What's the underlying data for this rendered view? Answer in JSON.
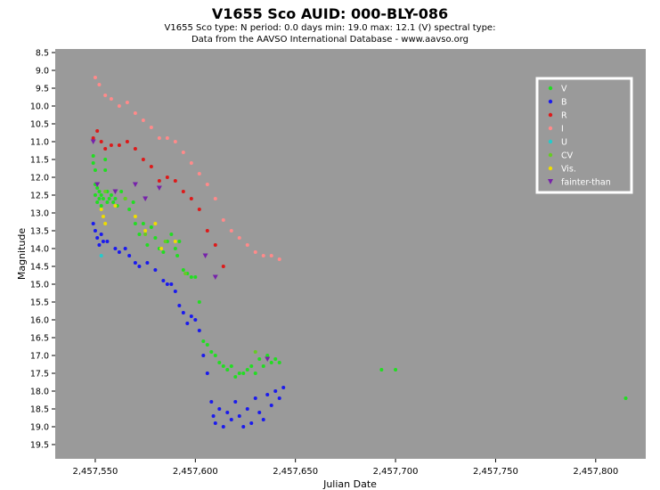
{
  "header": {
    "title": "V1655 Sco    AUID: 000-BLY-086",
    "subtitle_line1": "V1655 Sco   type: N   period: 0.0 days   min: 19.0   max: 12.1 (V)   spectral type:",
    "subtitle_line2": "Data from the AAVSO International Database - www.aavso.org"
  },
  "chart_data": {
    "type": "scatter",
    "xlabel": "Julian Date",
    "ylabel": "Magnitude",
    "xlim": [
      2457530,
      2457825
    ],
    "ylim": [
      19.5,
      8.5
    ],
    "y_inverted": true,
    "x_ticks": [
      2457550,
      2457600,
      2457650,
      2457700,
      2457750,
      2457800
    ],
    "x_tick_labels": [
      "2,457,550",
      "2,457,600",
      "2,457,650",
      "2,457,700",
      "2,457,750",
      "2,457,800"
    ],
    "y_ticks": [
      8.5,
      9.0,
      9.5,
      10.0,
      10.5,
      11.0,
      11.5,
      12.0,
      12.5,
      13.0,
      13.5,
      14.0,
      14.5,
      15.0,
      15.5,
      16.0,
      16.5,
      17.0,
      17.5,
      18.0,
      18.5,
      19.0,
      19.5
    ],
    "y_tick_labels": [
      "8.5",
      "9.0",
      "9.5",
      "10.0",
      "10.5",
      "11.0",
      "11.5",
      "12.0",
      "12.5",
      "13.0",
      "13.5",
      "14.0",
      "14.5",
      "15.0",
      "15.5",
      "16.0",
      "16.5",
      "17.0",
      "17.5",
      "18.0",
      "18.5",
      "19.0",
      "19.5"
    ],
    "plot_background": "#9a9a9a",
    "grid": false,
    "legend_position": "top-right",
    "series": [
      {
        "name": "V",
        "color": "#22dd22",
        "marker": "circle",
        "points": [
          [
            2457549,
            11.4
          ],
          [
            2457549,
            11.6
          ],
          [
            2457550,
            11.8
          ],
          [
            2457550,
            12.2
          ],
          [
            2457550,
            12.5
          ],
          [
            2457551,
            12.3
          ],
          [
            2457551,
            12.7
          ],
          [
            2457552,
            12.4
          ],
          [
            2457552,
            12.6
          ],
          [
            2457553,
            12.5
          ],
          [
            2457553,
            12.8
          ],
          [
            2457554,
            12.6
          ],
          [
            2457555,
            11.5
          ],
          [
            2457555,
            11.8
          ],
          [
            2457556,
            12.4
          ],
          [
            2457556,
            12.7
          ],
          [
            2457557,
            12.6
          ],
          [
            2457558,
            12.5
          ],
          [
            2457559,
            12.7
          ],
          [
            2457560,
            12.6
          ],
          [
            2457561,
            12.8
          ],
          [
            2457563,
            12.4
          ],
          [
            2457565,
            12.6
          ],
          [
            2457567,
            12.9
          ],
          [
            2457569,
            12.7
          ],
          [
            2457570,
            13.3
          ],
          [
            2457572,
            13.6
          ],
          [
            2457574,
            13.3
          ],
          [
            2457576,
            13.9
          ],
          [
            2457578,
            13.4
          ],
          [
            2457580,
            13.7
          ],
          [
            2457582,
            14.0
          ],
          [
            2457584,
            14.1
          ],
          [
            2457586,
            13.8
          ],
          [
            2457588,
            13.6
          ],
          [
            2457590,
            14.0
          ],
          [
            2457591,
            14.2
          ],
          [
            2457592,
            13.8
          ],
          [
            2457594,
            14.6
          ],
          [
            2457596,
            14.7
          ],
          [
            2457598,
            14.8
          ],
          [
            2457600,
            14.8
          ],
          [
            2457602,
            15.5
          ],
          [
            2457604,
            16.6
          ],
          [
            2457606,
            16.7
          ],
          [
            2457608,
            16.9
          ],
          [
            2457610,
            17.0
          ],
          [
            2457612,
            17.2
          ],
          [
            2457614,
            17.3
          ],
          [
            2457616,
            17.4
          ],
          [
            2457618,
            17.3
          ],
          [
            2457620,
            17.6
          ],
          [
            2457622,
            17.5
          ],
          [
            2457624,
            17.5
          ],
          [
            2457626,
            17.4
          ],
          [
            2457628,
            17.3
          ],
          [
            2457630,
            17.5
          ],
          [
            2457632,
            17.1
          ],
          [
            2457634,
            17.3
          ],
          [
            2457636,
            17.0
          ],
          [
            2457638,
            17.2
          ],
          [
            2457640,
            17.1
          ],
          [
            2457642,
            17.2
          ],
          [
            2457693,
            17.4
          ],
          [
            2457700,
            17.4
          ],
          [
            2457815,
            18.2
          ]
        ]
      },
      {
        "name": "B",
        "color": "#1a1aee",
        "marker": "circle",
        "points": [
          [
            2457549,
            13.3
          ],
          [
            2457550,
            13.5
          ],
          [
            2457551,
            13.7
          ],
          [
            2457552,
            13.9
          ],
          [
            2457553,
            13.6
          ],
          [
            2457554,
            13.8
          ],
          [
            2457556,
            13.8
          ],
          [
            2457560,
            14.0
          ],
          [
            2457562,
            14.1
          ],
          [
            2457565,
            14.0
          ],
          [
            2457567,
            14.2
          ],
          [
            2457570,
            14.4
          ],
          [
            2457572,
            14.5
          ],
          [
            2457576,
            14.4
          ],
          [
            2457580,
            14.6
          ],
          [
            2457584,
            14.9
          ],
          [
            2457586,
            15.0
          ],
          [
            2457588,
            15.0
          ],
          [
            2457590,
            15.2
          ],
          [
            2457592,
            15.6
          ],
          [
            2457594,
            15.8
          ],
          [
            2457596,
            16.1
          ],
          [
            2457598,
            15.9
          ],
          [
            2457600,
            16.0
          ],
          [
            2457602,
            16.3
          ],
          [
            2457604,
            17.0
          ],
          [
            2457606,
            17.5
          ],
          [
            2457608,
            18.3
          ],
          [
            2457609,
            18.7
          ],
          [
            2457610,
            18.9
          ],
          [
            2457612,
            18.5
          ],
          [
            2457614,
            19.0
          ],
          [
            2457616,
            18.6
          ],
          [
            2457618,
            18.8
          ],
          [
            2457620,
            18.3
          ],
          [
            2457622,
            18.7
          ],
          [
            2457624,
            19.0
          ],
          [
            2457626,
            18.5
          ],
          [
            2457628,
            18.9
          ],
          [
            2457630,
            18.2
          ],
          [
            2457632,
            18.6
          ],
          [
            2457634,
            18.8
          ],
          [
            2457636,
            18.1
          ],
          [
            2457638,
            18.4
          ],
          [
            2457640,
            18.0
          ],
          [
            2457642,
            18.2
          ],
          [
            2457644,
            17.9
          ]
        ]
      },
      {
        "name": "R",
        "color": "#dd1a1a",
        "marker": "circle",
        "points": [
          [
            2457549,
            10.9
          ],
          [
            2457551,
            10.7
          ],
          [
            2457553,
            11.0
          ],
          [
            2457555,
            11.2
          ],
          [
            2457558,
            11.1
          ],
          [
            2457562,
            11.1
          ],
          [
            2457566,
            11.0
          ],
          [
            2457570,
            11.2
          ],
          [
            2457574,
            11.5
          ],
          [
            2457578,
            11.7
          ],
          [
            2457582,
            12.1
          ],
          [
            2457586,
            12.0
          ],
          [
            2457590,
            12.1
          ],
          [
            2457594,
            12.4
          ],
          [
            2457598,
            12.6
          ],
          [
            2457602,
            12.9
          ],
          [
            2457606,
            13.5
          ],
          [
            2457610,
            13.9
          ],
          [
            2457614,
            14.5
          ]
        ]
      },
      {
        "name": "I",
        "color": "#ff8a8a",
        "marker": "circle",
        "points": [
          [
            2457550,
            9.2
          ],
          [
            2457552,
            9.4
          ],
          [
            2457555,
            9.7
          ],
          [
            2457558,
            9.8
          ],
          [
            2457562,
            10.0
          ],
          [
            2457566,
            9.9
          ],
          [
            2457570,
            10.2
          ],
          [
            2457574,
            10.4
          ],
          [
            2457578,
            10.6
          ],
          [
            2457582,
            10.9
          ],
          [
            2457586,
            10.9
          ],
          [
            2457590,
            11.0
          ],
          [
            2457594,
            11.3
          ],
          [
            2457598,
            11.6
          ],
          [
            2457602,
            11.9
          ],
          [
            2457606,
            12.2
          ],
          [
            2457610,
            12.6
          ],
          [
            2457614,
            13.2
          ],
          [
            2457618,
            13.5
          ],
          [
            2457622,
            13.7
          ],
          [
            2457626,
            13.9
          ],
          [
            2457630,
            14.1
          ],
          [
            2457634,
            14.2
          ],
          [
            2457638,
            14.2
          ],
          [
            2457642,
            14.3
          ]
        ]
      },
      {
        "name": "U",
        "color": "#22cccc",
        "marker": "circle",
        "points": [
          [
            2457553,
            14.2
          ]
        ]
      },
      {
        "name": "CV",
        "color": "#66cc22",
        "marker": "circle",
        "points": [
          [
            2457555,
            12.4
          ],
          [
            2457565,
            12.6
          ],
          [
            2457575,
            13.6
          ],
          [
            2457585,
            13.8
          ],
          [
            2457595,
            14.7
          ],
          [
            2457630,
            16.9
          ]
        ]
      },
      {
        "name": "Vis.",
        "color": "#eedd00",
        "marker": "circle",
        "points": [
          [
            2457553,
            12.9
          ],
          [
            2457554,
            13.1
          ],
          [
            2457555,
            13.3
          ],
          [
            2457560,
            12.8
          ],
          [
            2457570,
            13.1
          ],
          [
            2457575,
            13.5
          ],
          [
            2457580,
            13.3
          ],
          [
            2457583,
            14.0
          ],
          [
            2457590,
            13.8
          ]
        ]
      },
      {
        "name": "fainter-than",
        "color": "#7722aa",
        "marker": "triangle-down",
        "points": [
          [
            2457549,
            11.0
          ],
          [
            2457551,
            12.2
          ],
          [
            2457560,
            12.4
          ],
          [
            2457570,
            12.2
          ],
          [
            2457575,
            12.6
          ],
          [
            2457582,
            12.3
          ],
          [
            2457605,
            14.2
          ],
          [
            2457610,
            14.8
          ],
          [
            2457636,
            17.1
          ]
        ]
      }
    ]
  }
}
